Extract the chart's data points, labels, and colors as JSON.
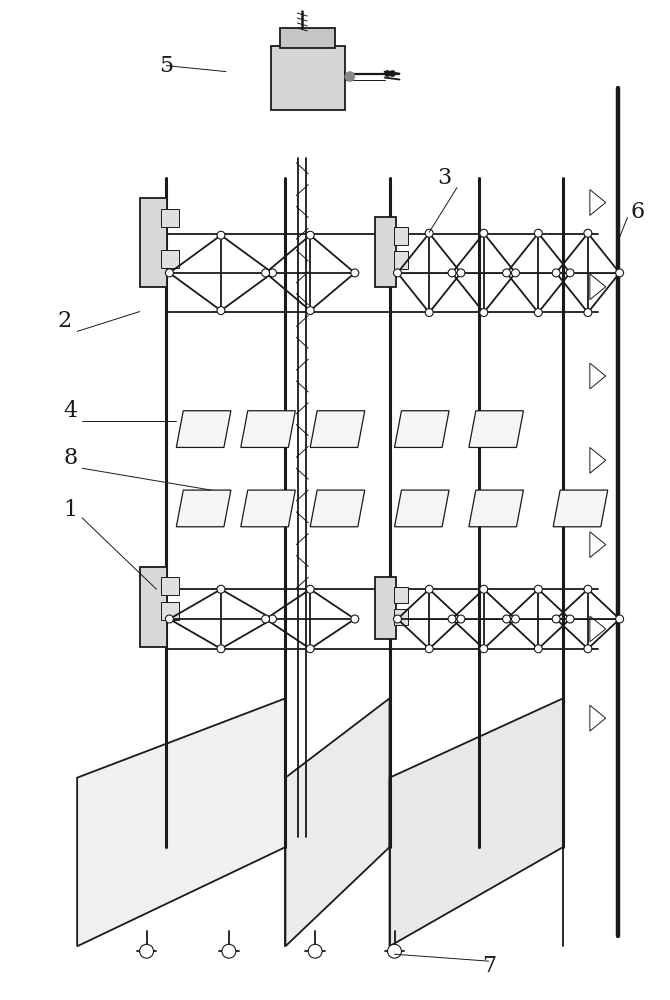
{
  "bg_color": "#ffffff",
  "lc": "#1a1a1a",
  "lw": 1.3,
  "lw_thin": 0.7,
  "lw_thick": 2.2,
  "figsize": [
    6.7,
    10.0
  ],
  "dpi": 100
}
